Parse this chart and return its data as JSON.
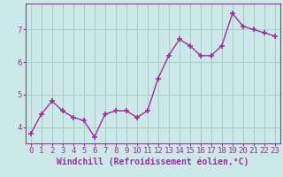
{
  "x": [
    0,
    1,
    2,
    3,
    4,
    5,
    6,
    7,
    8,
    9,
    10,
    11,
    12,
    13,
    14,
    15,
    16,
    17,
    18,
    19,
    20,
    21,
    22,
    23
  ],
  "y": [
    3.8,
    4.4,
    4.8,
    4.5,
    4.3,
    4.2,
    3.7,
    4.4,
    4.5,
    4.5,
    4.3,
    4.5,
    5.5,
    6.2,
    6.7,
    6.5,
    6.2,
    6.2,
    6.5,
    7.5,
    7.1,
    7.0,
    6.9,
    6.8
  ],
  "line_color": "#993399",
  "marker": "+",
  "bg_color": "#cce8e8",
  "grid_color": "#aacccc",
  "xlabel": "Windchill (Refroidissement éolien,°C)",
  "xlim": [
    -0.5,
    23.5
  ],
  "ylim": [
    3.5,
    7.8
  ],
  "yticks": [
    4,
    5,
    6,
    7
  ],
  "xticks": [
    0,
    1,
    2,
    3,
    4,
    5,
    6,
    7,
    8,
    9,
    10,
    11,
    12,
    13,
    14,
    15,
    16,
    17,
    18,
    19,
    20,
    21,
    22,
    23
  ],
  "tick_fontsize": 6.5,
  "xlabel_fontsize": 7,
  "line_width": 1.0,
  "spine_color": "#993399",
  "xlabel_color": "#993399"
}
